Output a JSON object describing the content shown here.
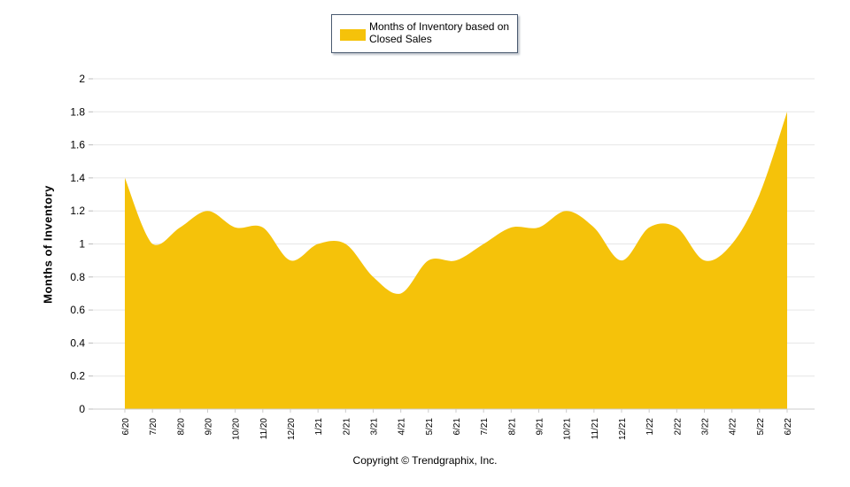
{
  "chart_data": {
    "type": "area",
    "categories": [
      "6/20",
      "7/20",
      "8/20",
      "9/20",
      "10/20",
      "11/20",
      "12/20",
      "1/21",
      "2/21",
      "3/21",
      "4/21",
      "5/21",
      "6/21",
      "7/21",
      "8/21",
      "9/21",
      "10/21",
      "11/21",
      "12/21",
      "1/22",
      "2/22",
      "3/22",
      "4/22",
      "5/22",
      "6/22"
    ],
    "series": [
      {
        "name": "Months of Inventory based on Closed Sales",
        "values": [
          1.4,
          1.0,
          1.1,
          1.2,
          1.1,
          1.1,
          0.9,
          1.0,
          1.0,
          0.8,
          0.7,
          0.9,
          0.9,
          1.0,
          1.1,
          1.1,
          1.2,
          1.1,
          0.9,
          1.1,
          1.1,
          0.9,
          1.0,
          1.3,
          1.8
        ]
      }
    ],
    "ylabel": "Months of Inventory",
    "xlabel": "",
    "ylim": [
      0,
      2
    ],
    "yticks": [
      "0",
      "0.2",
      "0.4",
      "0.6",
      "0.8",
      "1",
      "1.2",
      "1.4",
      "1.6",
      "1.8",
      "2"
    ],
    "grid": true,
    "legend": "top-center",
    "color": "#F5C20A"
  },
  "footer": {
    "copyright": "Copyright © Trendgraphix, Inc."
  }
}
